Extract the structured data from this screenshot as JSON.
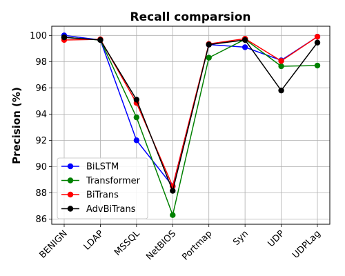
{
  "chart_data": {
    "type": "line",
    "title": "Recall comparsion",
    "xlabel": "",
    "ylabel": "Precision (%)",
    "categories": [
      "BENIGN",
      "LDAP",
      "MSSQL",
      "NetBIOS",
      "Portmap",
      "Syn",
      "UDP",
      "UDPLag"
    ],
    "ylim": [
      85.6,
      100.7
    ],
    "yticks": [
      86,
      88,
      90,
      92,
      94,
      96,
      98,
      100
    ],
    "grid": true,
    "legend": "lower-left",
    "series": [
      {
        "name": "BiLSTM",
        "color": "#0000ff",
        "values": [
          100.0,
          99.65,
          92.0,
          88.5,
          99.3,
          99.1,
          98.1,
          99.9
        ]
      },
      {
        "name": "Transformer",
        "color": "#008000",
        "values": [
          99.85,
          99.65,
          93.75,
          86.3,
          98.3,
          99.7,
          97.65,
          97.7
        ]
      },
      {
        "name": "BiTrans",
        "color": "#ff0000",
        "values": [
          99.65,
          99.7,
          94.85,
          88.5,
          99.35,
          99.75,
          98.05,
          99.9
        ]
      },
      {
        "name": "AdvBiTrans",
        "color": "#000000",
        "values": [
          99.85,
          99.65,
          95.1,
          88.15,
          99.3,
          99.65,
          95.8,
          99.45
        ]
      }
    ]
  }
}
